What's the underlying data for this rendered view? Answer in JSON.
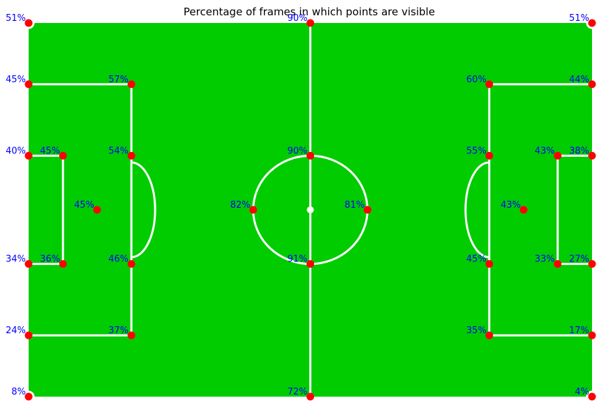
{
  "chart_data": {
    "type": "scatter",
    "title": "Percentage of frames in which points are visible",
    "xlabel": "",
    "ylabel": "",
    "xlim": [
      0,
      105
    ],
    "ylim": [
      0,
      68
    ],
    "grid": false,
    "colors": {
      "pitch": "#00cc00",
      "lines": "#ffffff",
      "points": "#ff0000",
      "labels": "#0000ff"
    },
    "points": [
      {
        "x": 0,
        "y": 68,
        "label": "51%"
      },
      {
        "x": 52.5,
        "y": 68,
        "label": "90%"
      },
      {
        "x": 105,
        "y": 68,
        "label": "51%"
      },
      {
        "x": 0,
        "y": 56.85,
        "label": "45%"
      },
      {
        "x": 19.15,
        "y": 56.85,
        "label": "57%"
      },
      {
        "x": 85.85,
        "y": 56.85,
        "label": "60%"
      },
      {
        "x": 105,
        "y": 56.85,
        "label": "44%"
      },
      {
        "x": 0,
        "y": 43.85,
        "label": "40%"
      },
      {
        "x": 6.4,
        "y": 43.85,
        "label": "45%"
      },
      {
        "x": 19.15,
        "y": 43.85,
        "label": "54%"
      },
      {
        "x": 52.5,
        "y": 43.85,
        "label": "90%"
      },
      {
        "x": 85.85,
        "y": 43.85,
        "label": "55%"
      },
      {
        "x": 98.6,
        "y": 43.85,
        "label": "43%"
      },
      {
        "x": 105,
        "y": 43.85,
        "label": "38%"
      },
      {
        "x": 12.75,
        "y": 34,
        "label": "45%"
      },
      {
        "x": 41.85,
        "y": 34,
        "label": "82%"
      },
      {
        "x": 63.15,
        "y": 34,
        "label": "81%"
      },
      {
        "x": 92.25,
        "y": 34,
        "label": "43%"
      },
      {
        "x": 0,
        "y": 24.15,
        "label": "34%"
      },
      {
        "x": 6.4,
        "y": 24.15,
        "label": "36%"
      },
      {
        "x": 19.15,
        "y": 24.15,
        "label": "46%"
      },
      {
        "x": 52.5,
        "y": 24.15,
        "label": "91%"
      },
      {
        "x": 85.85,
        "y": 24.15,
        "label": "45%"
      },
      {
        "x": 98.6,
        "y": 24.15,
        "label": "33%"
      },
      {
        "x": 105,
        "y": 24.15,
        "label": "27%"
      },
      {
        "x": 0,
        "y": 11.15,
        "label": "24%"
      },
      {
        "x": 19.15,
        "y": 11.15,
        "label": "37%"
      },
      {
        "x": 85.85,
        "y": 11.15,
        "label": "35%"
      },
      {
        "x": 105,
        "y": 11.15,
        "label": "17%"
      },
      {
        "x": 0,
        "y": 0,
        "label": "8%"
      },
      {
        "x": 52.5,
        "y": 0,
        "label": "72%"
      },
      {
        "x": 105,
        "y": 0,
        "label": "4%"
      }
    ]
  }
}
